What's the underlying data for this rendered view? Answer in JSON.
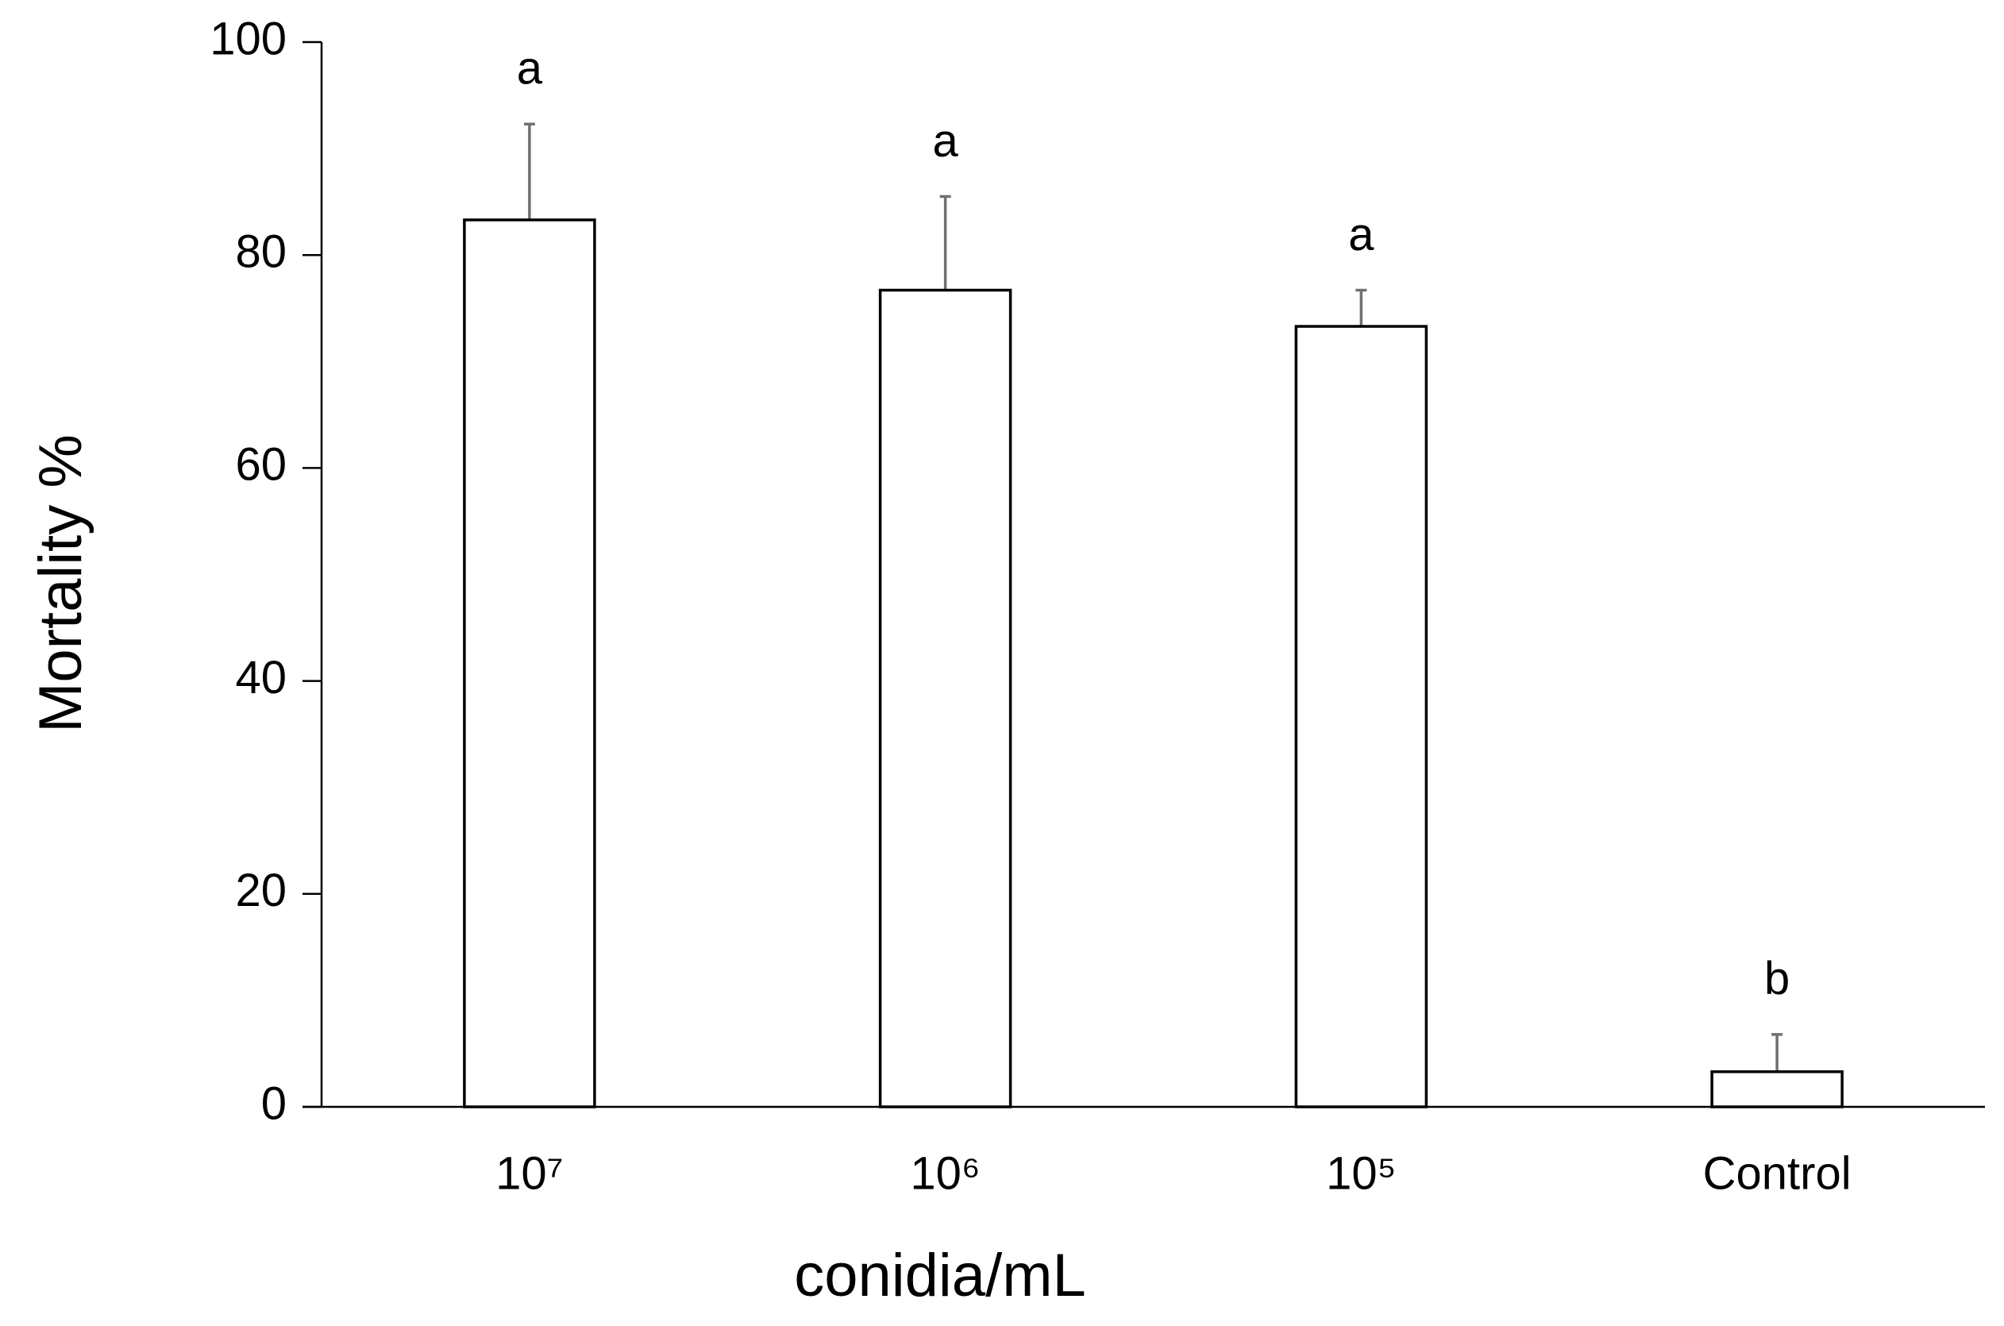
{
  "chart_data": {
    "type": "bar",
    "x_label": "conidia/mL",
    "y_label": "Mortality %",
    "categories": [
      "10⁷",
      "10⁶",
      "10⁵",
      "Control"
    ],
    "values": [
      83.3,
      76.7,
      73.3,
      3.3
    ],
    "errors": [
      9.0,
      8.8,
      3.4,
      3.5
    ],
    "annotations": [
      "a",
      "a",
      "a",
      "b"
    ],
    "color": "#ffffff",
    "edge_color": "#000000",
    "error_color": "#707070",
    "ylim": [
      0,
      100
    ],
    "yticks": [
      0,
      20,
      40,
      60,
      80,
      100
    ],
    "grid": false
  }
}
